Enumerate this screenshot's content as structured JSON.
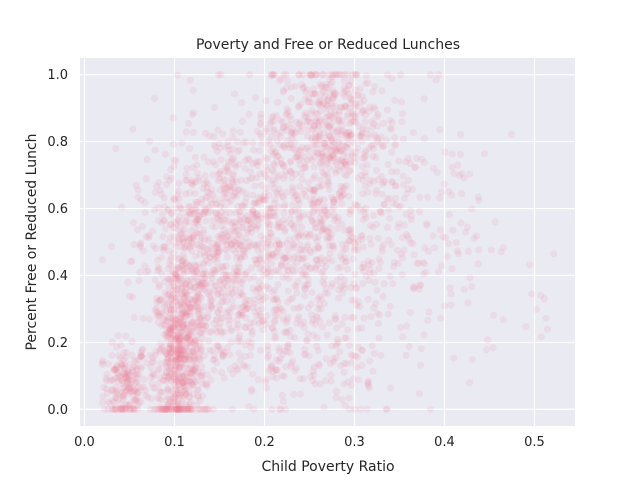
{
  "chart_data": {
    "type": "scatter",
    "title": "Poverty and Free or Reduced Lunches",
    "xlabel": "Child Poverty Ratio",
    "ylabel": "Percent Free or Reduced Lunch",
    "xlim": [
      -0.005,
      0.545
    ],
    "ylim": [
      -0.05,
      1.05
    ],
    "xticks": [
      {
        "value": 0.0,
        "label": "0.0"
      },
      {
        "value": 0.1,
        "label": "0.1"
      },
      {
        "value": 0.2,
        "label": "0.2"
      },
      {
        "value": 0.3,
        "label": "0.3"
      },
      {
        "value": 0.4,
        "label": "0.4"
      },
      {
        "value": 0.5,
        "label": "0.5"
      }
    ],
    "yticks": [
      {
        "value": 0.0,
        "label": "0.0"
      },
      {
        "value": 0.2,
        "label": "0.2"
      },
      {
        "value": 0.4,
        "label": "0.4"
      },
      {
        "value": 0.6,
        "label": "0.6"
      },
      {
        "value": 0.8,
        "label": "0.8"
      },
      {
        "value": 1.0,
        "label": "1.0"
      }
    ],
    "grid": true,
    "point_color": "#f07f92",
    "point_opacity": 0.12,
    "background_color": "#eaeaf2",
    "grid_color": "#ffffff",
    "clusters": [
      {
        "cx": 0.045,
        "cy": 0.07,
        "sx": 0.012,
        "sy": 0.06,
        "n": 180
      },
      {
        "cx": 0.105,
        "cy": 0.15,
        "sx": 0.014,
        "sy": 0.12,
        "n": 520
      },
      {
        "cx": 0.12,
        "cy": 0.42,
        "sx": 0.03,
        "sy": 0.17,
        "n": 480
      },
      {
        "cx": 0.17,
        "cy": 0.55,
        "sx": 0.045,
        "sy": 0.18,
        "n": 420
      },
      {
        "cx": 0.23,
        "cy": 0.55,
        "sx": 0.045,
        "sy": 0.18,
        "n": 420
      },
      {
        "cx": 0.27,
        "cy": 0.85,
        "sx": 0.03,
        "sy": 0.1,
        "n": 380
      },
      {
        "cx": 0.31,
        "cy": 0.55,
        "sx": 0.04,
        "sy": 0.2,
        "n": 200
      },
      {
        "cx": 0.36,
        "cy": 0.6,
        "sx": 0.04,
        "sy": 0.22,
        "n": 110
      },
      {
        "cx": 0.2,
        "cy": 0.25,
        "sx": 0.05,
        "sy": 0.12,
        "n": 160
      },
      {
        "cx": 0.26,
        "cy": 0.1,
        "sx": 0.05,
        "sy": 0.08,
        "n": 90
      },
      {
        "cx": 0.42,
        "cy": 0.5,
        "sx": 0.04,
        "sy": 0.2,
        "n": 40
      },
      {
        "cx": 0.51,
        "cy": 0.5,
        "sx": 0.01,
        "sy": 0.2,
        "n": 8
      }
    ],
    "bounds": {
      "xmin": 0.02,
      "xmax": 0.53,
      "ymin": 0.0,
      "ymax": 1.0
    }
  }
}
